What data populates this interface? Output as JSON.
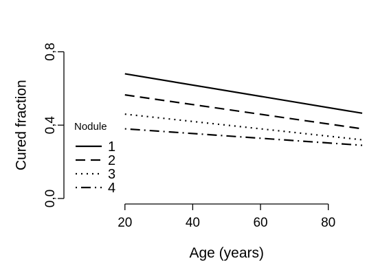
{
  "chart_data": {
    "type": "line",
    "xlabel": "Age (years)",
    "ylabel": "Cured fraction",
    "xlim": [
      2,
      90
    ],
    "ylim": [
      -0.03,
      1.03
    ],
    "xticks": [
      20,
      40,
      60,
      80
    ],
    "xtick_labels": [
      "20",
      "40",
      "60",
      "80"
    ],
    "yticks": [
      0.0,
      0.4,
      0.8
    ],
    "ytick_labels": [
      "0,0",
      "0,4",
      "0,8"
    ],
    "legend": {
      "title": "Nodule",
      "position": "left"
    },
    "series": [
      {
        "name": "1",
        "dash": "solid",
        "x": [
          20,
          90
        ],
        "y": [
          0.68,
          0.465
        ]
      },
      {
        "name": "2",
        "dash": "dashed",
        "x": [
          20,
          90
        ],
        "y": [
          0.565,
          0.38
        ]
      },
      {
        "name": "3",
        "dash": "dotted",
        "x": [
          20,
          90
        ],
        "y": [
          0.46,
          0.32
        ]
      },
      {
        "name": "4",
        "dash": "dotdash",
        "x": [
          20,
          90
        ],
        "y": [
          0.38,
          0.29
        ]
      }
    ]
  }
}
